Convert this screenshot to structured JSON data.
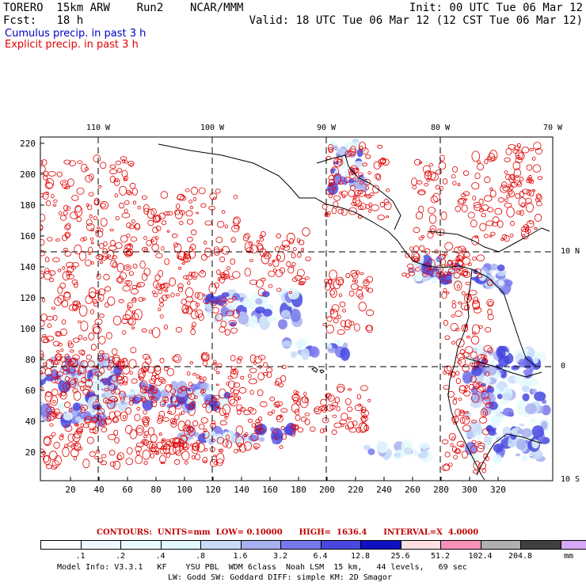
{
  "header": {
    "model_line": "TORERO  15km ARW    Run2    NCAR/MMM",
    "fcst_label": "Fcst:",
    "fcst_value": "18 h",
    "init_text": "Init: 00 UTC Tue 06 Mar 12",
    "valid_text": "Valid: 18 UTC Tue 06 Mar 12 (12 CST Tue 06 Mar 12)",
    "cumulus_label": "Cumulus precip. in past 3 h",
    "explicit_label": "Explicit precip. in past 3 h"
  },
  "colors": {
    "cumulus": "#0000c0",
    "explicit": "#e00000",
    "contour_info": "#c00000"
  },
  "map": {
    "lon_labels": [
      "110 W",
      "100 W",
      "90 W",
      "80 W",
      "70 W"
    ],
    "lat_labels": [
      "10 N",
      "0",
      "10 S"
    ],
    "y_axis": [
      "220",
      "200",
      "180",
      "160",
      "140",
      "120",
      "100",
      "80",
      "60",
      "40",
      "20"
    ],
    "x_axis": [
      "20",
      "40",
      "60",
      "80",
      "100",
      "120",
      "140",
      "160",
      "180",
      "200",
      "220",
      "240",
      "260",
      "280",
      "300",
      "320"
    ]
  },
  "contour_info": {
    "label": "CONTOURS:",
    "units": "UNITS=mm",
    "low": "LOW= 0.10000",
    "high": "HIGH=  1636.4",
    "interval": "INTERVAL=X  4.0000"
  },
  "legend": {
    "unit": "mm",
    "labels": [
      ".1",
      ".2",
      ".4",
      ".8",
      "1.6",
      "3.2",
      "6.4",
      "12.8",
      "25.6",
      "51.2",
      "102.4",
      "204.8"
    ],
    "colors": [
      "#ffffff",
      "#f0f8ff",
      "#e8fafa",
      "#e0f8ff",
      "#c8dcf8",
      "#a8b0f0",
      "#7878ec",
      "#4848e0",
      "#1010c0",
      "#ffe0e0",
      "#f890b8",
      "#b0b0b0",
      "#404040",
      "#d8a8f8"
    ]
  },
  "footer": {
    "line1": "Model Info: V3.3.1   KF    YSU PBL  WDM 6class  Noah LSM  15 km,   44 levels,   69 sec",
    "line2": "LW: Godd SW: Goddard DIFF: simple KM: 2D Smagor"
  }
}
